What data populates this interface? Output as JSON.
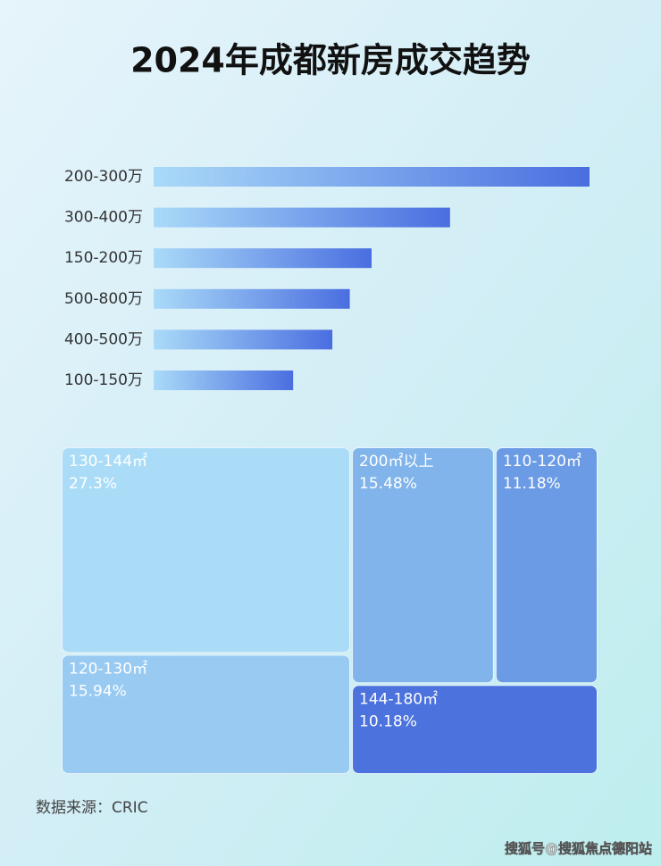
{
  "title": "2024年成都新房成交趋势",
  "source": "数据来源：CRIC",
  "watermark": "搜狐号@搜狐焦点德阳站",
  "chart_data": [
    {
      "type": "hbar",
      "categories": [
        "200-300万",
        "300-400万",
        "150-200万",
        "500-800万",
        "400-500万",
        "100-150万"
      ],
      "values": [
        100,
        68,
        50,
        45,
        41,
        32
      ],
      "xlim": [
        0,
        100
      ],
      "color": [
        "#aadaf8",
        "#4a6ee0"
      ]
    },
    {
      "type": "treemap",
      "categories": [
        "130-144㎡",
        "200㎡以上",
        "110-120㎡",
        "120-130㎡",
        "144-180㎡"
      ],
      "values": [
        27.3,
        15.48,
        11.18,
        15.94,
        10.18
      ],
      "value_labels": [
        "27.3%",
        "15.48%",
        "11.18%",
        "15.94%",
        "10.18%"
      ],
      "colors": [
        "#aadcf7",
        "#80b4eb",
        "#6b9be5",
        "#98caf2",
        "#4c72de"
      ]
    }
  ]
}
